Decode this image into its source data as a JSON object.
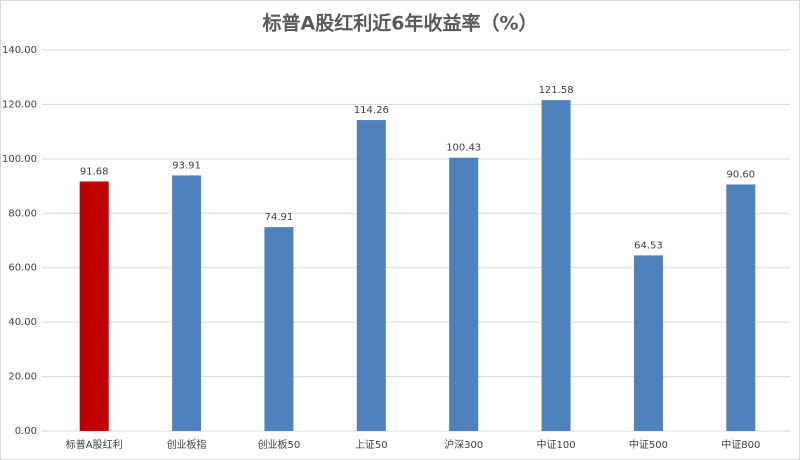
{
  "chart_data": {
    "type": "bar",
    "title": "标普A股红利近6年收益率（%）",
    "categories": [
      "标普A股红利",
      "创业板指",
      "创业板50",
      "上证50",
      "沪深300",
      "中证100",
      "中证500",
      "中证800"
    ],
    "values": [
      91.68,
      93.91,
      74.91,
      114.26,
      100.43,
      121.58,
      64.53,
      90.6
    ],
    "value_labels": [
      "91.68",
      "93.91",
      "74.91",
      "114.26",
      "100.43",
      "121.58",
      "64.53",
      "90.60"
    ],
    "colors": [
      "#c00000",
      "#4f81bd",
      "#4f81bd",
      "#4f81bd",
      "#4f81bd",
      "#4f81bd",
      "#4f81bd",
      "#4f81bd"
    ],
    "ylim": [
      0,
      140
    ],
    "yticks": [
      {
        "value": 0,
        "label": "0.00"
      },
      {
        "value": 20,
        "label": "20.00"
      },
      {
        "value": 40,
        "label": "40.00"
      },
      {
        "value": 60,
        "label": "60.00"
      },
      {
        "value": 80,
        "label": "80.00"
      },
      {
        "value": 100,
        "label": "100.00"
      },
      {
        "value": 120,
        "label": "120.00"
      },
      {
        "value": 140,
        "label": "140.00"
      }
    ],
    "grid": true
  }
}
